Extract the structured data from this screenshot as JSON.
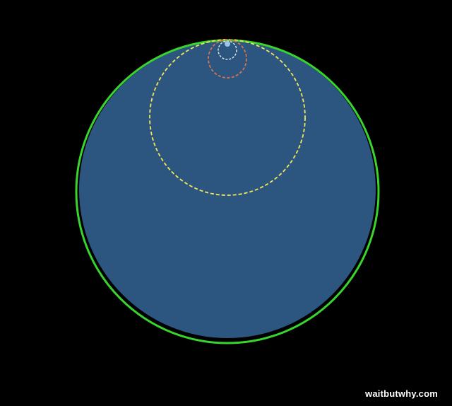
{
  "colors": {
    "background": "#000000",
    "blue_fill": "#2c5680",
    "green_ring": "#39d42e",
    "yellow_dashed": "#f2e857",
    "orange_dashed": "#d9744a",
    "white_dashed": "#e8e8e8",
    "tiny_dot": "#9fc3e6",
    "watermark_text": "#ffffff"
  },
  "watermark": "waitbutwhy.com"
}
